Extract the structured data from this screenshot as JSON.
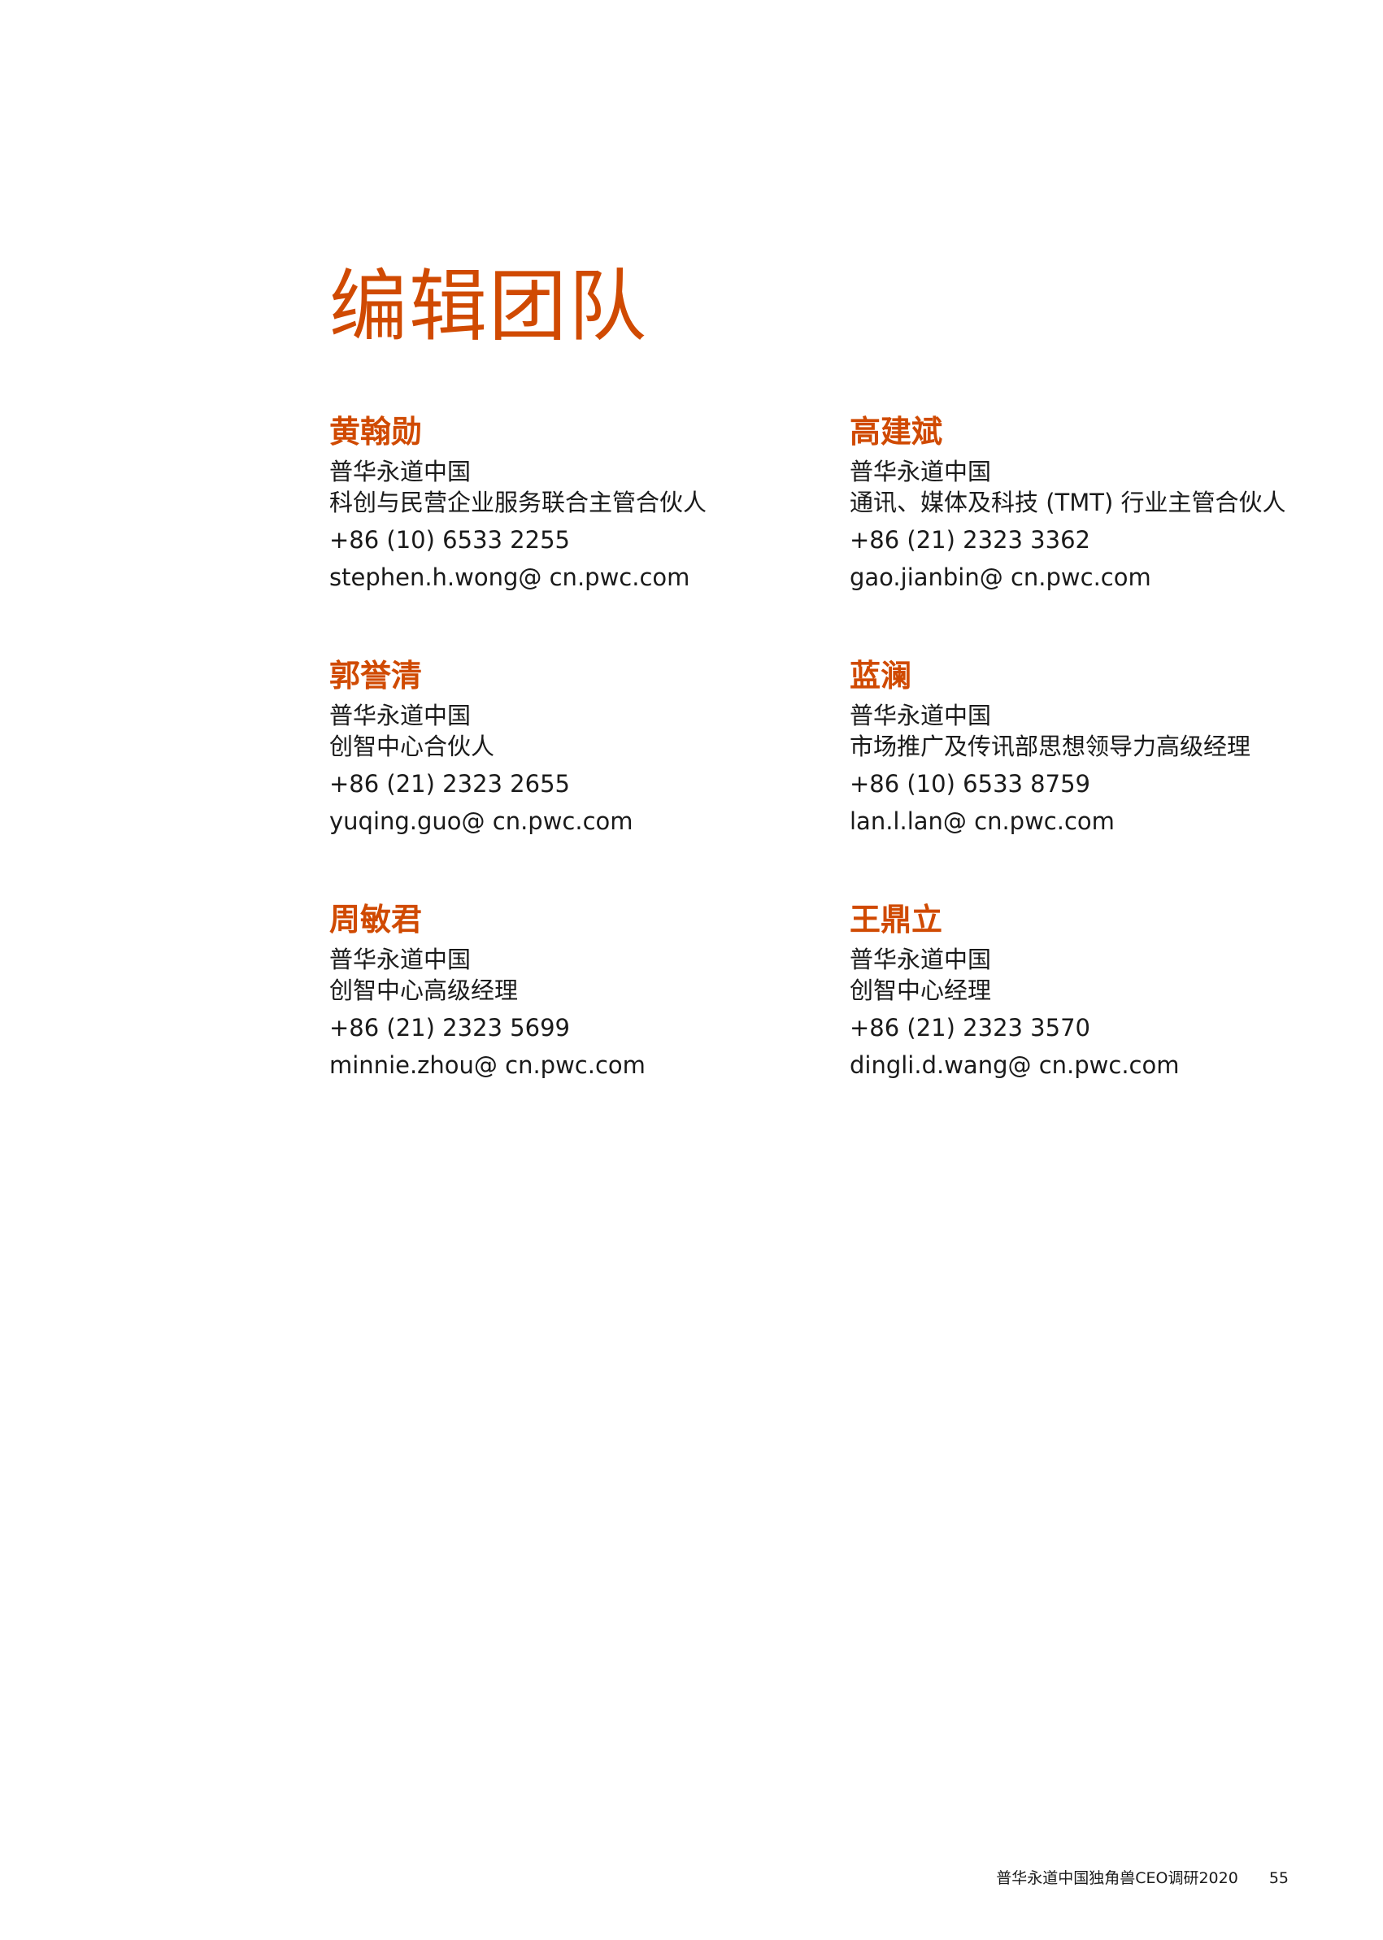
{
  "page": {
    "title": "编辑团队"
  },
  "contacts": [
    {
      "name": "黄翰勋",
      "company": "普华永道中国",
      "role": "科创与民营企业服务联合主管合伙人",
      "phone": "+86 (10) 6533 2255",
      "email": "stephen.h.wong@ cn.pwc.com"
    },
    {
      "name": "高建斌",
      "company": "普华永道中国",
      "role": "通讯、媒体及科技 (TMT) 行业主管合伙人",
      "phone": "+86 (21) 2323 3362",
      "email": "gao.jianbin@ cn.pwc.com"
    },
    {
      "name": "郭誉清",
      "company": "普华永道中国",
      "role": "创智中心合伙人",
      "phone": "+86 (21) 2323 2655",
      "email": "yuqing.guo@ cn.pwc.com"
    },
    {
      "name": "蓝澜",
      "company": "普华永道中国",
      "role": "市场推广及传讯部思想领导力高级经理",
      "phone": "+86 (10) 6533 8759",
      "email": "lan.l.lan@ cn.pwc.com"
    },
    {
      "name": "周敏君",
      "company": "普华永道中国",
      "role": "创智中心高级经理",
      "phone": "+86 (21) 2323 5699",
      "email": "minnie.zhou@ cn.pwc.com"
    },
    {
      "name": "王鼎立",
      "company": "普华永道中国",
      "role": "创智中心经理",
      "phone": "+86 (21) 2323 3570",
      "email": "dingli.d.wang@ cn.pwc.com"
    }
  ],
  "footer": {
    "publication": "普华永道中国独角兽CEO调研2020",
    "page_number": "55"
  },
  "colors": {
    "accent": "#d04a02",
    "text": "#1a1a1a"
  }
}
